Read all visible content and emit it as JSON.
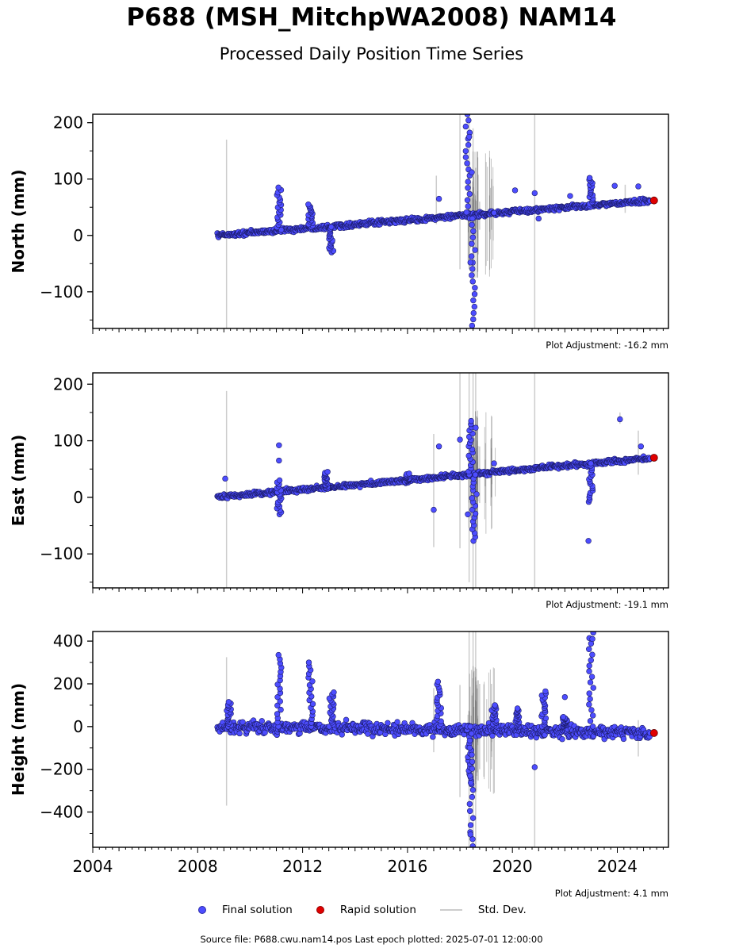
{
  "title": "P688 (MSH_MitchpWA2008) NAM14",
  "subtitle": "Processed Daily Position Time Series",
  "legend": {
    "final": "Final solution",
    "rapid": "Rapid solution",
    "stddev": "Std. Dev."
  },
  "colors": {
    "final": "#4d4dff",
    "rapid": "#e00000",
    "stddev": "#bbbbbb"
  },
  "source": "Source file: P688.cwu.nam14.pos  Last epoch plotted: 2025-07-01 12:00:00",
  "chart_data": [
    {
      "type": "scatter",
      "ylabel": "North (mm)",
      "xlim": [
        2004.0,
        2025.95
      ],
      "ylim": [
        -165,
        215
      ],
      "yticks": [
        -100,
        0,
        100,
        200
      ],
      "adjustment": "Plot Adjustment: -16.2 mm",
      "trend": [
        [
          2008.75,
          0
        ],
        [
          2025.4,
          62
        ]
      ],
      "scatter": 2,
      "features": [
        {
          "x": 2011.1,
          "t": "up",
          "lo": 10,
          "hi": 85
        },
        {
          "x": 2012.3,
          "t": "up",
          "lo": 15,
          "hi": 55
        },
        {
          "x": 2013.1,
          "t": "down",
          "lo": -30,
          "hi": 15
        },
        {
          "x": 2018.3,
          "t": "up",
          "lo": 30,
          "hi": 215
        },
        {
          "x": 2018.5,
          "t": "down",
          "lo": -160,
          "hi": 30
        },
        {
          "x": 2023.0,
          "t": "up",
          "lo": 50,
          "hi": 102
        }
      ],
      "outliers": [
        [
          2017.2,
          65
        ],
        [
          2018.35,
          175
        ],
        [
          2018.45,
          112
        ],
        [
          2018.4,
          -48
        ],
        [
          2019.3,
          40
        ],
        [
          2020.1,
          80
        ],
        [
          2020.85,
          75
        ],
        [
          2021.0,
          30
        ],
        [
          2022.2,
          70
        ],
        [
          2023.9,
          88
        ],
        [
          2024.8,
          87
        ]
      ],
      "sigma_bars": [
        [
          2009.1,
          -165,
          170
        ],
        [
          2017.1,
          20,
          106
        ],
        [
          2018.0,
          -60,
          215
        ],
        [
          2018.35,
          -60,
          215
        ],
        [
          2018.5,
          -80,
          190
        ],
        [
          2018.6,
          -20,
          120
        ],
        [
          2018.75,
          10,
          60
        ],
        [
          2019.2,
          10,
          100
        ],
        [
          2020.85,
          -165,
          215
        ],
        [
          2024.3,
          40,
          90
        ]
      ],
      "final_end": [
        2025.25,
        62
      ],
      "rapid": [
        2025.4,
        62
      ]
    },
    {
      "type": "scatter",
      "ylabel": "East (mm)",
      "xlim": [
        2004.0,
        2025.95
      ],
      "ylim": [
        -160,
        220
      ],
      "yticks": [
        -100,
        0,
        100,
        200
      ],
      "adjustment": "Plot Adjustment: -19.1 mm",
      "trend": [
        [
          2008.75,
          0
        ],
        [
          2025.4,
          70
        ]
      ],
      "scatter": 2,
      "features": [
        {
          "x": 2011.1,
          "t": "down",
          "lo": -30,
          "hi": 30
        },
        {
          "x": 2012.9,
          "t": "up",
          "lo": 15,
          "hi": 45
        },
        {
          "x": 2016.0,
          "t": "up",
          "lo": 25,
          "hi": 42
        },
        {
          "x": 2018.4,
          "t": "up",
          "lo": 40,
          "hi": 135
        },
        {
          "x": 2018.55,
          "t": "down",
          "lo": -77,
          "hi": 40
        },
        {
          "x": 2023.0,
          "t": "down",
          "lo": -8,
          "hi": 60
        }
      ],
      "outliers": [
        [
          2009.05,
          33
        ],
        [
          2011.1,
          92
        ],
        [
          2011.1,
          65
        ],
        [
          2017.0,
          -22
        ],
        [
          2017.2,
          90
        ],
        [
          2018.0,
          102
        ],
        [
          2018.3,
          -30
        ],
        [
          2018.6,
          123
        ],
        [
          2019.3,
          60
        ],
        [
          2022.9,
          -77
        ],
        [
          2024.1,
          138
        ],
        [
          2024.9,
          90
        ]
      ],
      "sigma_bars": [
        [
          2009.1,
          -160,
          188
        ],
        [
          2017.0,
          -88,
          112
        ],
        [
          2018.0,
          -90,
          220
        ],
        [
          2018.35,
          -150,
          220
        ],
        [
          2018.5,
          -160,
          220
        ],
        [
          2018.6,
          -160,
          220
        ],
        [
          2018.75,
          -10,
          90
        ],
        [
          2019.2,
          0,
          105
        ],
        [
          2020.85,
          -160,
          220
        ],
        [
          2024.1,
          130,
          150
        ],
        [
          2024.8,
          40,
          118
        ]
      ],
      "final_end": [
        2025.25,
        70
      ],
      "rapid": [
        2025.4,
        70
      ]
    },
    {
      "type": "scatter",
      "ylabel": "Height (mm)",
      "xlim": [
        2004.0,
        2025.95
      ],
      "ylim": [
        -565,
        445
      ],
      "yticks": [
        -400,
        -200,
        0,
        200,
        400
      ],
      "xticks": [
        2004,
        2008,
        2012,
        2016,
        2020,
        2024
      ],
      "adjustment": "Plot Adjustment: 4.1 mm",
      "trend": [
        [
          2008.75,
          0
        ],
        [
          2025.4,
          -30
        ]
      ],
      "scatter": 14,
      "features": [
        {
          "x": 2009.2,
          "t": "up",
          "lo": 0,
          "hi": 115
        },
        {
          "x": 2011.1,
          "t": "up",
          "lo": 0,
          "hi": 335
        },
        {
          "x": 2012.3,
          "t": "up",
          "lo": 0,
          "hi": 300
        },
        {
          "x": 2013.1,
          "t": "up",
          "lo": 0,
          "hi": 160
        },
        {
          "x": 2017.2,
          "t": "up",
          "lo": 0,
          "hi": 210
        },
        {
          "x": 2018.35,
          "t": "down",
          "lo": -270,
          "hi": 0
        },
        {
          "x": 2018.45,
          "t": "down",
          "lo": -560,
          "hi": 0
        },
        {
          "x": 2019.3,
          "t": "up",
          "lo": 0,
          "hi": 100
        },
        {
          "x": 2020.2,
          "t": "up",
          "lo": 0,
          "hi": 85
        },
        {
          "x": 2021.2,
          "t": "up",
          "lo": 0,
          "hi": 165
        },
        {
          "x": 2022.0,
          "t": "up",
          "lo": 0,
          "hi": 45
        },
        {
          "x": 2023.0,
          "t": "up",
          "lo": 0,
          "hi": 440
        }
      ],
      "outliers": [
        [
          2020.85,
          -190
        ],
        [
          2022.0,
          138
        ],
        [
          2023.05,
          410
        ],
        [
          2018.4,
          -505
        ]
      ],
      "sigma_bars": [
        [
          2009.1,
          -370,
          325
        ],
        [
          2017.0,
          -120,
          180
        ],
        [
          2018.0,
          -330,
          195
        ],
        [
          2018.35,
          -565,
          445
        ],
        [
          2018.5,
          -565,
          445
        ],
        [
          2018.6,
          -565,
          445
        ],
        [
          2018.75,
          -200,
          200
        ],
        [
          2019.2,
          -200,
          200
        ],
        [
          2020.85,
          -565,
          0
        ],
        [
          2024.8,
          -140,
          30
        ]
      ],
      "final_end": [
        2025.25,
        -30
      ],
      "rapid": [
        2025.4,
        -30
      ]
    }
  ]
}
